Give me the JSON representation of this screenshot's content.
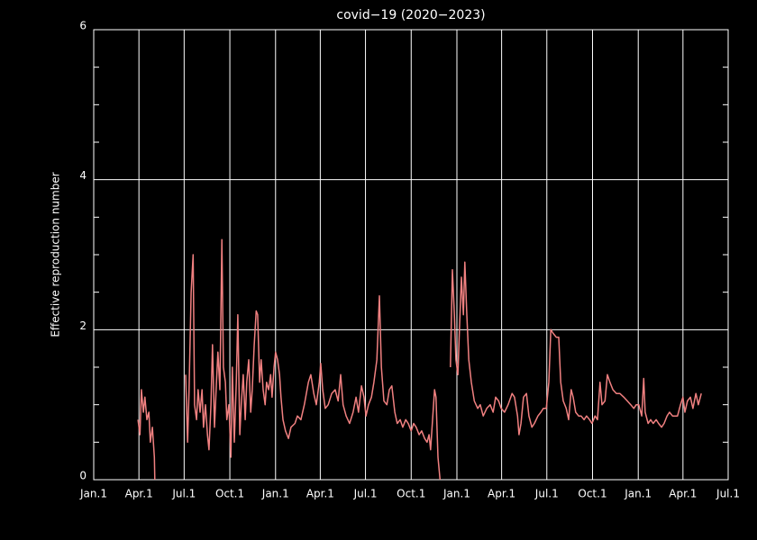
{
  "chart_data": {
    "type": "line",
    "title": "covid−19 (2020−2023)",
    "y_label": "Effective reproduction number",
    "xlim": [
      0,
      1277
    ],
    "xticks": [
      {
        "value": 0,
        "label": "Jan.1"
      },
      {
        "value": 91,
        "label": "Apr.1"
      },
      {
        "value": 182,
        "label": "Jul.1"
      },
      {
        "value": 274,
        "label": "Oct.1"
      },
      {
        "value": 366,
        "label": "Jan.1"
      },
      {
        "value": 456,
        "label": "Apr.1"
      },
      {
        "value": 547,
        "label": "Jul.1"
      },
      {
        "value": 639,
        "label": "Oct.1"
      },
      {
        "value": 731,
        "label": "Jan.1"
      },
      {
        "value": 821,
        "label": "Apr.1"
      },
      {
        "value": 912,
        "label": "Jul.1"
      },
      {
        "value": 1004,
        "label": "Oct.1"
      },
      {
        "value": 1096,
        "label": "Jan.1"
      },
      {
        "value": 1186,
        "label": "Apr.1"
      },
      {
        "value": 1277,
        "label": "Jul.1"
      }
    ],
    "ylim": [
      0,
      6
    ],
    "yticks": [
      0,
      2,
      4,
      6
    ],
    "y_minor_ticks": [
      0.5,
      1,
      1.5,
      2.5,
      3,
      3.5,
      4.5,
      5,
      5.5
    ],
    "grid": true,
    "series": [
      {
        "color": "#f08080",
        "x": [
          89,
          93,
          96,
          100,
          103,
          107,
          111,
          114,
          118,
          122,
          123,
          150,
          185,
          189,
          192,
          196,
          200,
          203,
          207,
          210,
          214,
          218,
          221,
          225,
          229,
          232,
          236,
          239,
          243,
          247,
          250,
          254,
          258,
          261,
          265,
          268,
          272,
          276,
          279,
          283,
          287,
          290,
          294,
          297,
          301,
          305,
          308,
          312,
          316,
          319,
          323,
          327,
          330,
          334,
          337,
          341,
          345,
          348,
          352,
          356,
          359,
          363,
          366,
          370,
          374,
          377,
          381,
          386,
          392,
          397,
          405,
          410,
          417,
          424,
          432,
          437,
          443,
          448,
          454,
          457,
          461,
          466,
          472,
          479,
          486,
          492,
          497,
          502,
          508,
          515,
          522,
          528,
          533,
          539,
          544,
          548,
          553,
          559,
          564,
          570,
          575,
          579,
          584,
          590,
          595,
          600,
          606,
          611,
          617,
          622,
          628,
          633,
          639,
          644,
          649,
          655,
          660,
          666,
          671,
          675,
          678,
          682,
          686,
          689,
          693,
          697,
          710,
          718,
          722,
          726,
          729,
          733,
          736,
          740,
          744,
          747,
          751,
          755,
          760,
          766,
          773,
          778,
          784,
          791,
          798,
          804,
          809,
          815,
          820,
          827,
          834,
          842,
          847,
          853,
          856,
          860,
          865,
          871,
          876,
          882,
          887,
          894,
          900,
          905,
          911,
          916,
          920,
          925,
          931,
          936,
          940,
          945,
          951,
          956,
          961,
          965,
          970,
          976,
          981,
          987,
          992,
          998,
          1003,
          1009,
          1014,
          1019,
          1023,
          1029,
          1034,
          1039,
          1045,
          1052,
          1059,
          1067,
          1074,
          1081,
          1087,
          1092,
          1097,
          1103,
          1107,
          1110,
          1116,
          1121,
          1126,
          1132,
          1137,
          1143,
          1148,
          1154,
          1159,
          1165,
          1170,
          1175,
          1181,
          1186,
          1190,
          1195,
          1201,
          1206,
          1212,
          1217,
          1223
        ],
        "values": [
          0.8,
          0.6,
          1.2,
          0.9,
          1.1,
          0.8,
          0.9,
          0.5,
          0.7,
          0.3,
          0.0,
          null,
          1.4,
          0.5,
          1.2,
          2.5,
          3.0,
          1.0,
          0.8,
          1.2,
          0.9,
          1.2,
          0.7,
          1.0,
          0.6,
          0.4,
          1.0,
          1.8,
          0.7,
          1.3,
          1.7,
          1.2,
          3.2,
          1.5,
          1.3,
          0.8,
          1.0,
          0.3,
          1.5,
          0.5,
          1.3,
          2.2,
          0.6,
          1.0,
          1.4,
          0.8,
          1.3,
          1.6,
          0.9,
          1.2,
          1.8,
          2.25,
          2.2,
          1.3,
          1.6,
          1.2,
          1.0,
          1.3,
          1.2,
          1.4,
          1.1,
          1.5,
          1.7,
          1.6,
          1.4,
          1.1,
          0.8,
          0.65,
          0.55,
          0.7,
          0.75,
          0.85,
          0.8,
          1.0,
          1.3,
          1.4,
          1.15,
          1.0,
          1.3,
          1.55,
          1.2,
          0.95,
          1.0,
          1.15,
          1.2,
          1.05,
          1.4,
          1.0,
          0.85,
          0.75,
          0.9,
          1.1,
          0.9,
          1.25,
          1.1,
          0.85,
          1.0,
          1.1,
          1.3,
          1.6,
          2.45,
          1.5,
          1.05,
          1.0,
          1.2,
          1.25,
          0.9,
          0.75,
          0.8,
          0.7,
          0.8,
          0.75,
          0.65,
          0.75,
          0.7,
          0.6,
          0.65,
          0.55,
          0.5,
          0.6,
          0.4,
          0.8,
          1.2,
          1.1,
          0.3,
          0.0,
          null,
          1.5,
          2.8,
          2.2,
          1.6,
          1.4,
          2.0,
          2.7,
          2.2,
          2.9,
          2.2,
          1.6,
          1.3,
          1.05,
          0.95,
          1.0,
          0.85,
          0.95,
          1.0,
          0.9,
          1.1,
          1.05,
          0.95,
          0.9,
          1.0,
          1.15,
          1.1,
          0.85,
          0.6,
          0.75,
          1.1,
          1.15,
          0.85,
          0.7,
          0.75,
          0.85,
          0.9,
          0.95,
          0.95,
          1.3,
          2.0,
          1.95,
          1.9,
          1.9,
          1.3,
          1.05,
          0.95,
          0.8,
          1.2,
          1.1,
          0.9,
          0.85,
          0.85,
          0.8,
          0.85,
          0.8,
          0.75,
          0.85,
          0.8,
          1.3,
          1.0,
          1.05,
          1.4,
          1.3,
          1.2,
          1.15,
          1.15,
          1.1,
          1.05,
          1.0,
          0.95,
          1.0,
          1.0,
          0.85,
          1.35,
          0.9,
          0.75,
          0.8,
          0.75,
          0.8,
          0.75,
          0.7,
          0.75,
          0.85,
          0.9,
          0.85,
          0.85,
          0.85,
          1.0,
          1.1,
          0.9,
          1.05,
          1.1,
          0.95,
          1.15,
          1.0,
          1.15
        ]
      }
    ]
  }
}
